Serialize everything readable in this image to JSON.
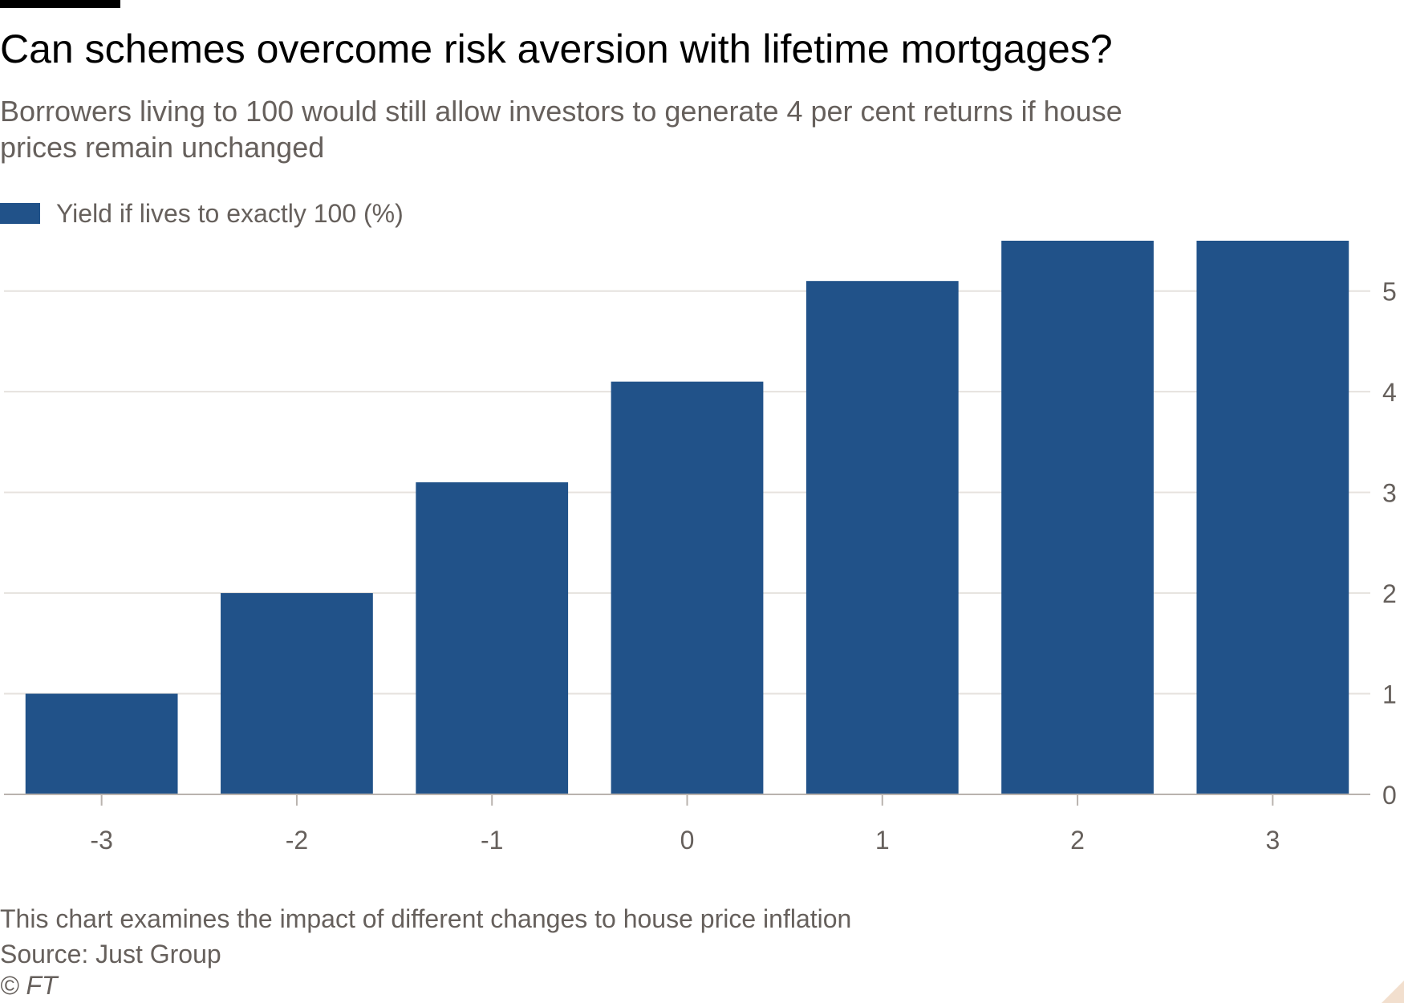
{
  "header": {
    "title": "Can schemes overcome risk aversion with lifetime mortgages?",
    "subtitle": "Borrowers living to 100 would still allow investors to generate 4 per cent returns if house prices remain unchanged"
  },
  "legend": {
    "label": "Yield if lives to exactly 100 (%)"
  },
  "footer": {
    "note": "This chart examines the impact of different changes to house price inflation",
    "source": "Source: Just Group",
    "copyright": "© FT"
  },
  "colors": {
    "bar": "#215289",
    "grid": "#e6e2de",
    "text": "#66605c",
    "axis": "#b9b3ae"
  },
  "chart_data": {
    "type": "bar",
    "categories": [
      "-3",
      "-2",
      "-1",
      "0",
      "1",
      "2",
      "3"
    ],
    "series": [
      {
        "name": "Yield if lives to exactly 100 (%)",
        "values": [
          1.0,
          2.0,
          3.1,
          4.1,
          5.1,
          5.5,
          5.5
        ]
      }
    ],
    "title": "Can schemes overcome risk aversion with lifetime mortgages?",
    "xlabel": "",
    "ylabel": "",
    "ylim": [
      0,
      5.5
    ],
    "yticks": [
      0,
      1,
      2,
      3,
      4,
      5
    ],
    "y_axis_side": "right",
    "grid": true,
    "legend_position": "top-left"
  }
}
